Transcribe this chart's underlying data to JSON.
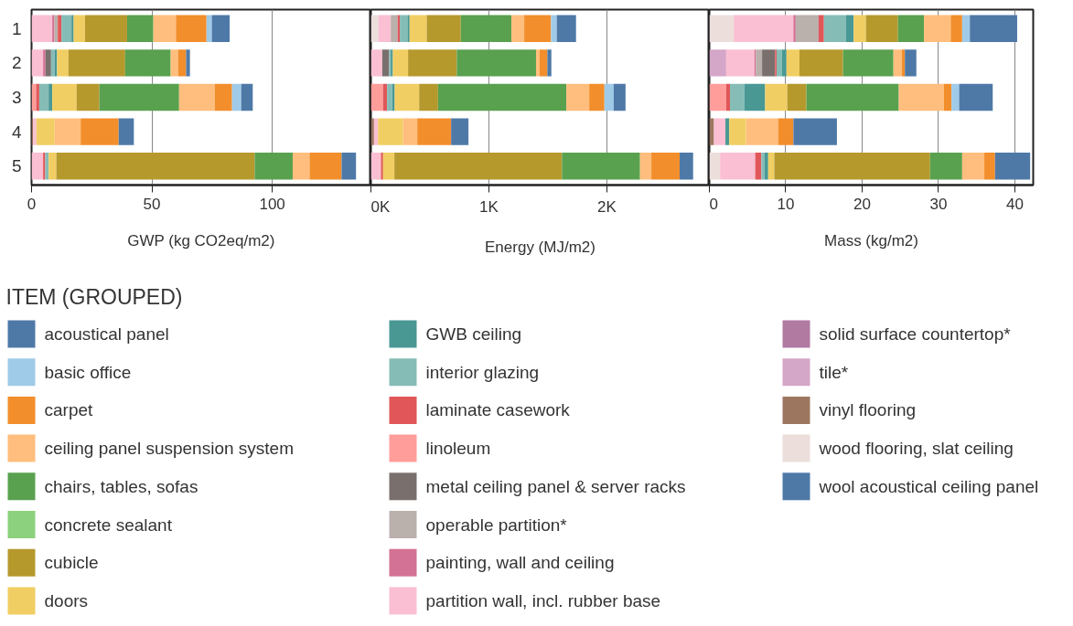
{
  "chart_data": [
    {
      "type": "bar",
      "orientation": "horizontal",
      "stacked": true,
      "categories": [
        "1",
        "2",
        "3",
        "4",
        "5"
      ],
      "xlabel": "GWP (kg CO2eq/m2)",
      "xlim": [
        0,
        141
      ],
      "xticks": [
        0,
        50,
        100
      ],
      "grid": "x",
      "legend": "bottom",
      "legend_title": "ITEM (GROUPED)",
      "series": [
        {
          "name": "wool acoustical ceiling panel",
          "color": "#4e79a7",
          "values": [
            null,
            null,
            null,
            null,
            null
          ]
        },
        {
          "name": "wood flooring, slat ceiling",
          "color": "#ebdedb",
          "values": [
            null,
            null,
            null,
            null,
            null
          ]
        },
        {
          "name": "vinyl flooring",
          "color": "#9d7660",
          "values": [
            null,
            null,
            null,
            0.6,
            null
          ]
        },
        {
          "name": "tile*",
          "color": "#d4a6c8",
          "values": [
            null,
            null,
            null,
            null,
            null
          ]
        },
        {
          "name": "solid surface countertop*",
          "color": "#b07aa1",
          "values": [
            null,
            null,
            null,
            null,
            null
          ]
        },
        {
          "name": "partition wall, incl. rubber base",
          "color": "#fabfd2",
          "values": [
            8.6,
            4.8,
            null,
            1.4,
            4.8
          ]
        },
        {
          "name": "painting, wall and ceiling",
          "color": "#d37295",
          "values": [
            0.9,
            1.0,
            null,
            null,
            null
          ]
        },
        {
          "name": "operable partition*",
          "color": "#bab0ac",
          "values": [
            1.4,
            null,
            null,
            null,
            null
          ]
        },
        {
          "name": "metal ceiling panel & server racks",
          "color": "#79706e",
          "values": [
            null,
            2.3,
            null,
            null,
            null
          ]
        },
        {
          "name": "linoleum",
          "color": "#ff9d9a",
          "values": [
            null,
            null,
            1.9,
            null,
            null
          ]
        },
        {
          "name": "laminate casework",
          "color": "#e15759",
          "values": [
            1.5,
            null,
            1.3,
            null,
            0.9
          ]
        },
        {
          "name": "interior glazing",
          "color": "#86bcb6",
          "values": [
            4.2,
            1.5,
            3.9,
            null,
            1.4
          ]
        },
        {
          "name": "GWB ceiling",
          "color": "#499894",
          "values": [
            0.9,
            1.0,
            1.5,
            null,
            null
          ]
        },
        {
          "name": "doors",
          "color": "#f1ce63",
          "values": [
            4.7,
            4.7,
            10.1,
            7.6,
            3.2
          ]
        },
        {
          "name": "cubicle",
          "color": "#b6992d",
          "values": [
            17.5,
            23.6,
            9.5,
            null,
            82.4
          ]
        },
        {
          "name": "concrete sealant",
          "color": "#8cd17d",
          "values": [
            null,
            null,
            null,
            null,
            null
          ]
        },
        {
          "name": "chairs, tables, sofas",
          "color": "#59a14f",
          "values": [
            10.9,
            18.9,
            33.1,
            null,
            15.8
          ]
        },
        {
          "name": "ceiling panel suspension system",
          "color": "#ffbe7d",
          "values": [
            9.4,
            3.2,
            14.8,
            10.8,
            7.0
          ]
        },
        {
          "name": "carpet",
          "color": "#f28e2b",
          "values": [
            12.7,
            3.2,
            7.2,
            15.8,
            13.3
          ]
        },
        {
          "name": "basic office",
          "color": "#a0cbe8",
          "values": [
            2.2,
            null,
            3.8,
            null,
            null
          ]
        },
        {
          "name": "acoustical panel",
          "color": "#4e79a7",
          "values": [
            7.4,
            1.6,
            4.8,
            6.3,
            6.0
          ]
        }
      ]
    },
    {
      "type": "bar",
      "orientation": "horizontal",
      "stacked": true,
      "categories": [
        "1",
        "2",
        "3",
        "4",
        "5"
      ],
      "xlabel": "Energy (MJ/m2)",
      "xlim": [
        0,
        2870
      ],
      "xticks": [
        {
          "value": 0,
          "label": "0K"
        },
        {
          "value": 1000,
          "label": "1K"
        },
        {
          "value": 2000,
          "label": "2K"
        }
      ],
      "grid": "x",
      "tick_labels": "x",
      "series": [
        {
          "color": "#ebdedb",
          "values": [
            65,
            null,
            null,
            null,
            null
          ]
        },
        {
          "color": "#9d7660",
          "values": [
            null,
            null,
            null,
            26,
            null
          ]
        },
        {
          "color": "#fabfd2",
          "values": [
            103,
            96,
            null,
            34,
            85
          ]
        },
        {
          "color": "#bab0ac",
          "values": [
            59,
            null,
            null,
            null,
            null
          ]
        },
        {
          "color": "#79706e",
          "values": [
            null,
            59,
            null,
            null,
            null
          ]
        },
        {
          "color": "#ff9d9a",
          "values": [
            null,
            null,
            103,
            null,
            null
          ]
        },
        {
          "color": "#e15759",
          "values": [
            18,
            null,
            34,
            null,
            18
          ]
        },
        {
          "color": "#86bcb6",
          "values": [
            65,
            13,
            44,
            null,
            null
          ]
        },
        {
          "color": "#499894",
          "values": [
            18,
            18,
            21,
            null,
            null
          ]
        },
        {
          "color": "#f1ce63",
          "values": [
            145,
            129,
            207,
            212,
            96
          ]
        },
        {
          "color": "#b6992d",
          "values": [
            289,
            413,
            160,
            null,
            1421
          ]
        },
        {
          "color": "#59a14f",
          "values": [
            429,
            672,
            1088,
            null,
            662
          ]
        },
        {
          "color": "#ffbe7d",
          "values": [
            109,
            31,
            194,
            121,
            96
          ]
        },
        {
          "color": "#f28e2b",
          "values": [
            227,
            65,
            129,
            287,
            240
          ]
        },
        {
          "color": "#a0cbe8",
          "values": [
            49,
            null,
            78,
            null,
            null
          ]
        },
        {
          "color": "#4e79a7",
          "values": [
            163,
            34,
            101,
            147,
            114
          ]
        }
      ]
    },
    {
      "type": "bar",
      "orientation": "horizontal",
      "stacked": true,
      "categories": [
        "1",
        "2",
        "3",
        "4",
        "5"
      ],
      "xlabel": "Mass (kg/m2)",
      "xlim": [
        0,
        42.4
      ],
      "xticks": [
        0,
        10,
        20,
        30,
        40
      ],
      "grid": "x",
      "tick_labels": "x",
      "series": [
        {
          "color": "#ebdedb",
          "values": [
            3.2,
            null,
            null,
            null,
            1.4
          ]
        },
        {
          "color": "#9d7660",
          "values": [
            null,
            null,
            null,
            0.6,
            null
          ]
        },
        {
          "color": "#d4a6c8",
          "values": [
            null,
            2.2,
            null,
            null,
            null
          ]
        },
        {
          "color": "#fabfd2",
          "values": [
            7.8,
            3.7,
            null,
            1.5,
            4.6
          ]
        },
        {
          "color": "#d37295",
          "values": [
            0.3,
            0.2,
            null,
            null,
            null
          ]
        },
        {
          "color": "#bab0ac",
          "values": [
            3.0,
            0.8,
            null,
            null,
            null
          ]
        },
        {
          "color": "#79706e",
          "values": [
            null,
            1.7,
            null,
            null,
            null
          ]
        },
        {
          "color": "#ff9d9a",
          "values": [
            null,
            null,
            2.2,
            null,
            null
          ]
        },
        {
          "color": "#e15759",
          "values": [
            0.7,
            0.2,
            0.5,
            null,
            0.8
          ]
        },
        {
          "color": "#86bcb6",
          "values": [
            2.9,
            0.7,
            1.9,
            null,
            0.4
          ]
        },
        {
          "color": "#499894",
          "values": [
            1.0,
            0.6,
            2.7,
            0.5,
            0.5
          ]
        },
        {
          "color": "#f1ce63",
          "values": [
            1.6,
            1.7,
            2.9,
            2.2,
            0.8
          ]
        },
        {
          "color": "#b6992d",
          "values": [
            4.2,
            5.7,
            2.5,
            null,
            20.4
          ]
        },
        {
          "color": "#59a14f",
          "values": [
            3.4,
            6.6,
            12.1,
            null,
            4.2
          ]
        },
        {
          "color": "#ffbe7d",
          "values": [
            3.5,
            1.1,
            5.9,
            4.2,
            2.9
          ]
        },
        {
          "color": "#f28e2b",
          "values": [
            1.5,
            0.4,
            1.0,
            2.0,
            1.4
          ]
        },
        {
          "color": "#a0cbe8",
          "values": [
            1.0,
            null,
            1.0,
            null,
            null
          ]
        },
        {
          "color": "#4e79a7",
          "values": [
            6.2,
            1.5,
            4.4,
            5.7,
            4.6
          ]
        }
      ]
    }
  ]
}
